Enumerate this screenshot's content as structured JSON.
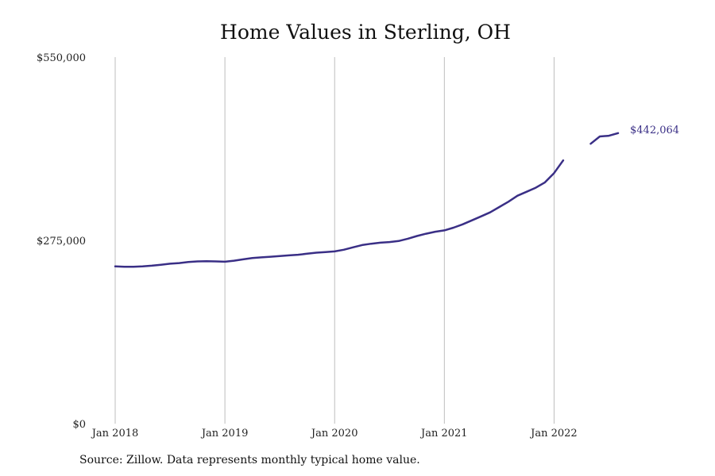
{
  "chart_data": {
    "type": "line",
    "title": "Home Values in Sterling, OH",
    "xlabel": "",
    "ylabel": "",
    "ylim": [
      0,
      550000
    ],
    "xlim": [
      "2018-01",
      "2022-08"
    ],
    "x_ticks": [
      "Jan 2018",
      "Jan 2019",
      "Jan 2020",
      "Jan 2021",
      "Jan 2022"
    ],
    "y_ticks": [
      "$0",
      "$275,000",
      "$550,000"
    ],
    "y_tick_values": [
      0,
      275000,
      550000
    ],
    "grid": {
      "vertical": true,
      "horizontal": false
    },
    "line_color": "#3a2f86",
    "end_label": "$442,064",
    "series": [
      {
        "x": [
          "2018-01",
          "2018-02",
          "2018-03",
          "2018-04",
          "2018-05",
          "2018-06",
          "2018-07",
          "2018-08",
          "2018-09",
          "2018-10",
          "2018-11",
          "2018-12",
          "2019-01",
          "2019-02",
          "2019-03",
          "2019-04",
          "2019-05",
          "2019-06",
          "2019-07",
          "2019-08",
          "2019-09",
          "2019-10",
          "2019-11",
          "2019-12",
          "2020-01",
          "2020-02",
          "2020-03",
          "2020-04",
          "2020-05",
          "2020-06",
          "2020-07",
          "2020-08",
          "2020-09",
          "2020-10",
          "2020-11",
          "2020-12",
          "2021-01",
          "2021-02",
          "2021-03",
          "2021-04",
          "2021-05",
          "2021-06",
          "2021-07",
          "2021-08",
          "2021-09",
          "2021-10",
          "2021-11",
          "2021-12",
          "2022-01",
          "2022-02",
          "2022-03",
          "2022-04",
          "2022-05",
          "2022-06",
          "2022-07",
          "2022-08"
        ],
        "values": [
          236000,
          235500,
          235500,
          236000,
          237000,
          238500,
          240000,
          241000,
          242500,
          243500,
          243800,
          243500,
          243000,
          244500,
          246500,
          248500,
          249500,
          250500,
          251500,
          252500,
          253500,
          255000,
          256500,
          257500,
          258500,
          261000,
          264500,
          268000,
          270000,
          271500,
          272500,
          274000,
          277500,
          281500,
          285000,
          288000,
          290000,
          294000,
          299000,
          305000,
          311000,
          317000,
          325000,
          333000,
          342000,
          348000,
          354000,
          362000,
          376000,
          395000,
          null,
          null,
          420000,
          431000,
          432000,
          436000
        ]
      }
    ]
  },
  "source_note": "Source: Zillow. Data represents monthly typical home value."
}
